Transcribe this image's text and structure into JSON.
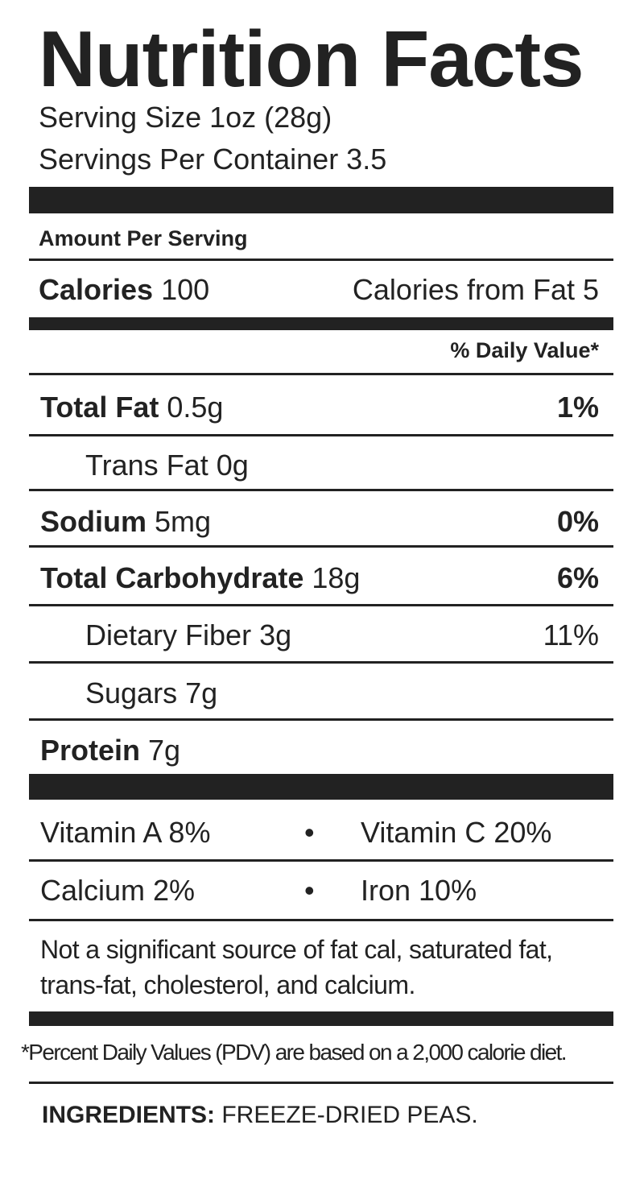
{
  "title": "Nutrition Facts",
  "serving_size": "Serving Size 1oz (28g)",
  "servings_per_container": "Servings Per Container 3.5",
  "amount_per_serving": "Amount Per Serving",
  "calories": {
    "label": "Calories",
    "value": "100",
    "from_fat": "Calories from Fat 5"
  },
  "daily_value_header": "% Daily Value*",
  "nutrients": [
    {
      "label": "Total Fat",
      "amount": "0.5g",
      "dv": "1%"
    },
    {
      "label": "Trans Fat",
      "amount": "0g",
      "dv": ""
    },
    {
      "label": "Sodium",
      "amount": "5mg",
      "dv": "0%"
    },
    {
      "label": "Total Carbohydrate",
      "amount": "18g",
      "dv": "6%"
    },
    {
      "label": "Dietary Fiber",
      "amount": "3g",
      "dv": "11%"
    },
    {
      "label": "Sugars",
      "amount": "7g",
      "dv": ""
    },
    {
      "label": "Protein",
      "amount": "7g",
      "dv": ""
    }
  ],
  "vitamins": [
    {
      "left": "Vitamin A 8%",
      "right": "Vitamin C 20%"
    },
    {
      "left": "Calcium 2%",
      "right": "Iron 10%"
    }
  ],
  "bullet": "•",
  "note_line1": "Not a significant source of fat cal, saturated fat,",
  "note_line2": "trans-fat, cholesterol, and calcium.",
  "pdv_footnote": "*Percent Daily Values (PDV) are based on a 2,000 calorie diet.",
  "ingredients": {
    "label": "INGREDIENTS:",
    "value": "FREEZE-DRIED PEAS."
  }
}
